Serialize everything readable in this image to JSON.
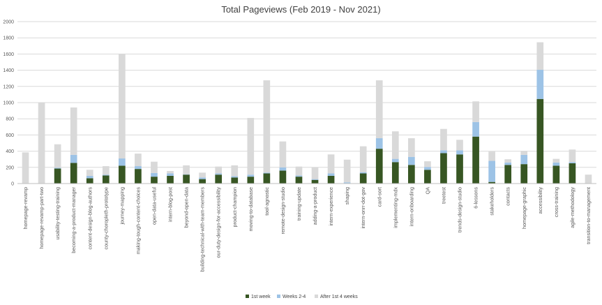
{
  "chart_data": {
    "type": "bar",
    "stacked": true,
    "title": "Total Pageviews (Feb 2019 - Nov 2021)",
    "xlabel": "",
    "ylabel": "",
    "ylim": [
      0,
      2000
    ],
    "yticks": [
      0,
      200,
      400,
      600,
      800,
      1000,
      1200,
      1400,
      1600,
      1800,
      2000
    ],
    "grid": true,
    "legend_position": "bottom",
    "categories": [
      "homepage-revamp",
      "homepage-revamp-part-two",
      "usability-testing-training",
      "becoming-a-product-manager",
      "content-design-blog-authors",
      "county-choropleth-prototype",
      "journey-mapping",
      "making-tough-content-choices",
      "open-data-useful",
      "intern-blog-post",
      "beyond-open-data",
      "building-technical-with-team-members",
      "our-duty-design-for-accessibility",
      "product-champion",
      "moving-to-database",
      "tool-agnostic",
      "remote-design-studio",
      "training-update",
      "adding-a-product",
      "intern-experience",
      "shaping",
      "intern-onrr-dot-gov",
      "card-sort",
      "implementing-mdx",
      "intern-onboarding",
      "QA",
      "treetest",
      "trends-design-studio",
      "6-lessons",
      "stakeholders",
      "contacts",
      "homepage-graphic",
      "accessibility",
      "cross-training",
      "agile-methodology",
      "transition-to-management"
    ],
    "series": [
      {
        "name": "1st week",
        "color": "#375623",
        "values": [
          0,
          0,
          185,
          255,
          65,
          100,
          220,
          180,
          85,
          95,
          110,
          55,
          110,
          75,
          85,
          125,
          160,
          85,
          45,
          95,
          5,
          125,
          430,
          265,
          230,
          170,
          375,
          360,
          580,
          20,
          230,
          240,
          1045,
          220,
          250,
          0
        ]
      },
      {
        "name": "Weeks 2-4",
        "color": "#9dc3e6",
        "values": [
          0,
          0,
          10,
          100,
          30,
          10,
          90,
          35,
          45,
          30,
          5,
          20,
          15,
          15,
          25,
          10,
          40,
          15,
          10,
          30,
          10,
          15,
          130,
          40,
          100,
          35,
          35,
          50,
          180,
          260,
          30,
          115,
          360,
          40,
          15,
          0
        ]
      },
      {
        "name": "After 1st 4 weeks",
        "color": "#d9d9d9",
        "values": [
          385,
          1000,
          290,
          585,
          75,
          105,
          1290,
          155,
          140,
          30,
          110,
          60,
          85,
          135,
          700,
          1140,
          320,
          110,
          145,
          235,
          280,
          320,
          715,
          340,
          230,
          70,
          265,
          130,
          255,
          115,
          40,
          50,
          340,
          45,
          155,
          110
        ]
      }
    ]
  }
}
